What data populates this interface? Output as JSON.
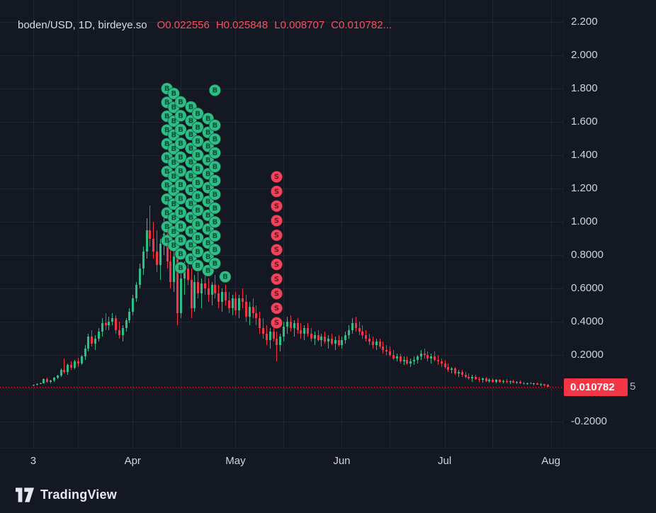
{
  "header": {
    "title": "boden/USD, 1D, birdeye.so",
    "ohlc_tokens": [
      "O0.022556",
      "H0.025848",
      "L0.008707",
      "C0.010782..."
    ]
  },
  "colors": {
    "background": "#141822",
    "grid": "rgba(148,158,184,0.10)",
    "up": "#2ebd85",
    "down": "#f23645",
    "buy_marker": "#2ebd85",
    "buy_letter": "#0b4f3a",
    "sell_marker": "#f0435c",
    "sell_letter": "#73101f",
    "axis_text": "#ced3df",
    "legend_red": "#f7525f",
    "price_tag_bg": "#f23645",
    "price_tag_text": "#ffffff",
    "current_price_line": "#f23645"
  },
  "y_axis": {
    "ticks": [
      {
        "value": 2.2,
        "label": "2.200"
      },
      {
        "value": 2.0,
        "label": "2.000"
      },
      {
        "value": 1.8,
        "label": "1.800"
      },
      {
        "value": 1.6,
        "label": "1.600"
      },
      {
        "value": 1.4,
        "label": "1.400"
      },
      {
        "value": 1.2,
        "label": "1.200"
      },
      {
        "value": 1.0,
        "label": "1.000"
      },
      {
        "value": 0.8,
        "label": "0.8000"
      },
      {
        "value": 0.6,
        "label": "0.6000"
      },
      {
        "value": 0.4,
        "label": "0.4000"
      },
      {
        "value": 0.2,
        "label": "0.2000"
      },
      {
        "value": -0.2,
        "label": "-0.2000"
      }
    ],
    "price_label": {
      "text": "0.010782",
      "value": 0.010782
    },
    "overflow_digit": "5"
  },
  "x_axis": {
    "ticks": [
      {
        "label": "3",
        "index": 0
      },
      {
        "label": "Apr",
        "index": 29
      },
      {
        "label": "May",
        "index": 59
      },
      {
        "label": "Jun",
        "index": 90
      },
      {
        "label": "Jul",
        "index": 120
      },
      {
        "label": "Aug",
        "index": 151
      }
    ]
  },
  "footer": {
    "brand": "TradingView"
  },
  "chart_data": {
    "type": "candlestick",
    "symbol": "boden/USD",
    "interval": "1D",
    "source": "birdeye.so",
    "ohlc": {
      "open": 0.022556,
      "high": 0.025848,
      "low": 0.008707,
      "close": 0.010782
    },
    "current_price": 0.010782,
    "price_range": [
      -0.357,
      2.332
    ],
    "x_range": [
      -9.7,
      154.6
    ],
    "y_grid_values": [
      2.2,
      2.0,
      1.8,
      1.6,
      1.4,
      1.2,
      1.0,
      0.8,
      0.6,
      0.4,
      0.2,
      0.0,
      -0.2
    ],
    "x_grid_indices": [
      0,
      13,
      29,
      43,
      59,
      73,
      90,
      104,
      120,
      134,
      151
    ],
    "marker_letters": {
      "buy": "B",
      "sell": "S"
    },
    "markers": [
      {
        "type": "buy",
        "index": 39,
        "top_price": 1.8,
        "count": 12
      },
      {
        "type": "buy",
        "index": 41,
        "top_price": 1.77,
        "count": 12
      },
      {
        "type": "buy",
        "index": 43,
        "top_price": 1.72,
        "count": 13
      },
      {
        "type": "buy",
        "index": 46,
        "top_price": 1.69,
        "count": 12
      },
      {
        "type": "buy",
        "index": 48,
        "top_price": 1.65,
        "count": 12
      },
      {
        "type": "buy",
        "index": 51,
        "top_price": 1.62,
        "count": 12
      },
      {
        "type": "buy",
        "index": 53,
        "top_price": 1.79,
        "count": 1
      },
      {
        "type": "buy",
        "index": 53,
        "top_price": 1.58,
        "count": 11
      },
      {
        "type": "buy",
        "index": 56,
        "top_price": 0.67,
        "count": 1
      },
      {
        "type": "sell",
        "index": 71,
        "top_price": 1.27,
        "count": 11
      }
    ],
    "candles": [
      [
        0.018,
        0.022,
        0.015,
        0.02
      ],
      [
        0.02,
        0.03,
        0.018,
        0.028
      ],
      [
        0.028,
        0.035,
        0.025,
        0.032
      ],
      [
        0.032,
        0.06,
        0.03,
        0.055
      ],
      [
        0.055,
        0.065,
        0.035,
        0.04
      ],
      [
        0.04,
        0.05,
        0.03,
        0.048
      ],
      [
        0.048,
        0.07,
        0.04,
        0.065
      ],
      [
        0.065,
        0.08,
        0.055,
        0.075
      ],
      [
        0.075,
        0.12,
        0.07,
        0.11
      ],
      [
        0.11,
        0.18,
        0.09,
        0.1
      ],
      [
        0.1,
        0.15,
        0.08,
        0.14
      ],
      [
        0.14,
        0.16,
        0.11,
        0.125
      ],
      [
        0.125,
        0.17,
        0.115,
        0.16
      ],
      [
        0.16,
        0.185,
        0.13,
        0.15
      ],
      [
        0.15,
        0.2,
        0.14,
        0.19
      ],
      [
        0.19,
        0.26,
        0.17,
        0.24
      ],
      [
        0.24,
        0.33,
        0.22,
        0.31
      ],
      [
        0.31,
        0.35,
        0.25,
        0.27
      ],
      [
        0.27,
        0.32,
        0.23,
        0.3
      ],
      [
        0.3,
        0.36,
        0.28,
        0.34
      ],
      [
        0.34,
        0.42,
        0.31,
        0.39
      ],
      [
        0.39,
        0.45,
        0.35,
        0.38
      ],
      [
        0.38,
        0.43,
        0.35,
        0.4
      ],
      [
        0.4,
        0.45,
        0.38,
        0.42
      ],
      [
        0.42,
        0.44,
        0.33,
        0.35
      ],
      [
        0.35,
        0.4,
        0.3,
        0.32
      ],
      [
        0.32,
        0.38,
        0.28,
        0.36
      ],
      [
        0.36,
        0.42,
        0.34,
        0.41
      ],
      [
        0.41,
        0.48,
        0.39,
        0.46
      ],
      [
        0.46,
        0.56,
        0.44,
        0.54
      ],
      [
        0.54,
        0.64,
        0.52,
        0.62
      ],
      [
        0.62,
        0.75,
        0.6,
        0.72
      ],
      [
        0.72,
        0.85,
        0.68,
        0.82
      ],
      [
        0.82,
        1.02,
        0.78,
        0.95
      ],
      [
        0.95,
        1.1,
        0.85,
        0.9
      ],
      [
        0.9,
        1.0,
        0.78,
        0.82
      ],
      [
        0.82,
        0.95,
        0.7,
        0.74
      ],
      [
        0.74,
        0.9,
        0.65,
        0.87
      ],
      [
        0.87,
        1.05,
        0.8,
        0.93
      ],
      [
        0.93,
        1.0,
        0.72,
        0.76
      ],
      [
        0.76,
        0.88,
        0.6,
        0.64
      ],
      [
        0.64,
        0.82,
        0.58,
        0.79
      ],
      [
        0.79,
        0.86,
        0.38,
        0.45
      ],
      [
        0.45,
        0.7,
        0.42,
        0.66
      ],
      [
        0.66,
        0.76,
        0.56,
        0.72
      ],
      [
        0.72,
        0.8,
        0.62,
        0.65
      ],
      [
        0.65,
        0.72,
        0.42,
        0.48
      ],
      [
        0.48,
        0.68,
        0.46,
        0.64
      ],
      [
        0.64,
        0.7,
        0.54,
        0.57
      ],
      [
        0.57,
        0.66,
        0.48,
        0.63
      ],
      [
        0.63,
        0.72,
        0.56,
        0.6
      ],
      [
        0.6,
        0.66,
        0.52,
        0.56
      ],
      [
        0.56,
        0.64,
        0.5,
        0.62
      ],
      [
        0.62,
        0.68,
        0.54,
        0.57
      ],
      [
        0.57,
        0.62,
        0.48,
        0.52
      ],
      [
        0.52,
        0.6,
        0.46,
        0.58
      ],
      [
        0.58,
        0.62,
        0.5,
        0.53
      ],
      [
        0.53,
        0.58,
        0.45,
        0.48
      ],
      [
        0.48,
        0.56,
        0.44,
        0.54
      ],
      [
        0.54,
        0.58,
        0.44,
        0.47
      ],
      [
        0.47,
        0.56,
        0.42,
        0.54
      ],
      [
        0.54,
        0.6,
        0.48,
        0.52
      ],
      [
        0.52,
        0.56,
        0.4,
        0.43
      ],
      [
        0.43,
        0.52,
        0.38,
        0.49
      ],
      [
        0.49,
        0.54,
        0.42,
        0.45
      ],
      [
        0.45,
        0.5,
        0.38,
        0.42
      ],
      [
        0.42,
        0.46,
        0.33,
        0.36
      ],
      [
        0.36,
        0.42,
        0.3,
        0.33
      ],
      [
        0.33,
        0.38,
        0.26,
        0.29
      ],
      [
        0.29,
        0.36,
        0.24,
        0.34
      ],
      [
        0.34,
        0.38,
        0.28,
        0.3
      ],
      [
        0.3,
        0.34,
        0.16,
        0.26
      ],
      [
        0.26,
        0.33,
        0.22,
        0.31
      ],
      [
        0.31,
        0.4,
        0.28,
        0.37
      ],
      [
        0.37,
        0.43,
        0.33,
        0.4
      ],
      [
        0.4,
        0.44,
        0.34,
        0.36
      ],
      [
        0.36,
        0.41,
        0.31,
        0.39
      ],
      [
        0.39,
        0.42,
        0.33,
        0.35
      ],
      [
        0.35,
        0.39,
        0.3,
        0.33
      ],
      [
        0.33,
        0.38,
        0.29,
        0.36
      ],
      [
        0.36,
        0.39,
        0.31,
        0.33
      ],
      [
        0.33,
        0.36,
        0.28,
        0.3
      ],
      [
        0.3,
        0.34,
        0.26,
        0.32
      ],
      [
        0.32,
        0.35,
        0.28,
        0.29
      ],
      [
        0.29,
        0.33,
        0.25,
        0.31
      ],
      [
        0.31,
        0.34,
        0.27,
        0.28
      ],
      [
        0.28,
        0.32,
        0.24,
        0.3
      ],
      [
        0.3,
        0.33,
        0.26,
        0.27
      ],
      [
        0.27,
        0.31,
        0.23,
        0.29
      ],
      [
        0.29,
        0.32,
        0.25,
        0.26
      ],
      [
        0.26,
        0.31,
        0.24,
        0.29
      ],
      [
        0.29,
        0.34,
        0.27,
        0.32
      ],
      [
        0.32,
        0.38,
        0.3,
        0.35
      ],
      [
        0.35,
        0.42,
        0.33,
        0.39
      ],
      [
        0.39,
        0.43,
        0.34,
        0.36
      ],
      [
        0.36,
        0.4,
        0.32,
        0.34
      ],
      [
        0.34,
        0.38,
        0.3,
        0.32
      ],
      [
        0.32,
        0.35,
        0.28,
        0.3
      ],
      [
        0.3,
        0.33,
        0.26,
        0.28
      ],
      [
        0.28,
        0.31,
        0.24,
        0.26
      ],
      [
        0.26,
        0.3,
        0.23,
        0.28
      ],
      [
        0.28,
        0.3,
        0.24,
        0.25
      ],
      [
        0.25,
        0.28,
        0.21,
        0.23
      ],
      [
        0.23,
        0.26,
        0.2,
        0.22
      ],
      [
        0.22,
        0.25,
        0.19,
        0.2
      ],
      [
        0.2,
        0.23,
        0.17,
        0.18
      ],
      [
        0.18,
        0.21,
        0.16,
        0.19
      ],
      [
        0.19,
        0.21,
        0.15,
        0.16
      ],
      [
        0.16,
        0.19,
        0.14,
        0.17
      ],
      [
        0.17,
        0.19,
        0.14,
        0.15
      ],
      [
        0.15,
        0.18,
        0.13,
        0.16
      ],
      [
        0.16,
        0.19,
        0.14,
        0.17
      ],
      [
        0.17,
        0.2,
        0.15,
        0.19
      ],
      [
        0.19,
        0.23,
        0.17,
        0.21
      ],
      [
        0.21,
        0.24,
        0.18,
        0.2
      ],
      [
        0.2,
        0.22,
        0.16,
        0.18
      ],
      [
        0.18,
        0.21,
        0.15,
        0.19
      ],
      [
        0.19,
        0.22,
        0.16,
        0.17
      ],
      [
        0.17,
        0.2,
        0.14,
        0.16
      ],
      [
        0.16,
        0.18,
        0.13,
        0.15
      ],
      [
        0.15,
        0.17,
        0.12,
        0.13
      ],
      [
        0.13,
        0.15,
        0.1,
        0.11
      ],
      [
        0.11,
        0.13,
        0.09,
        0.12
      ],
      [
        0.12,
        0.13,
        0.08,
        0.09
      ],
      [
        0.09,
        0.11,
        0.07,
        0.1
      ],
      [
        0.1,
        0.11,
        0.07,
        0.08
      ],
      [
        0.08,
        0.1,
        0.06,
        0.07
      ],
      [
        0.07,
        0.09,
        0.05,
        0.06
      ],
      [
        0.06,
        0.08,
        0.04,
        0.07
      ],
      [
        0.07,
        0.08,
        0.05,
        0.055
      ],
      [
        0.055,
        0.07,
        0.04,
        0.05
      ],
      [
        0.05,
        0.065,
        0.035,
        0.06
      ],
      [
        0.06,
        0.07,
        0.04,
        0.045
      ],
      [
        0.045,
        0.06,
        0.035,
        0.05
      ],
      [
        0.05,
        0.06,
        0.035,
        0.04
      ],
      [
        0.04,
        0.055,
        0.03,
        0.05
      ],
      [
        0.05,
        0.055,
        0.035,
        0.04
      ],
      [
        0.04,
        0.05,
        0.03,
        0.045
      ],
      [
        0.045,
        0.055,
        0.032,
        0.038
      ],
      [
        0.038,
        0.048,
        0.028,
        0.042
      ],
      [
        0.042,
        0.05,
        0.03,
        0.035
      ],
      [
        0.035,
        0.045,
        0.025,
        0.04
      ],
      [
        0.04,
        0.046,
        0.028,
        0.032
      ],
      [
        0.032,
        0.04,
        0.022,
        0.028
      ],
      [
        0.028,
        0.036,
        0.02,
        0.032
      ],
      [
        0.032,
        0.038,
        0.024,
        0.026
      ],
      [
        0.026,
        0.034,
        0.018,
        0.03
      ],
      [
        0.03,
        0.034,
        0.02,
        0.022
      ],
      [
        0.022,
        0.03,
        0.015,
        0.026
      ],
      [
        0.026,
        0.028,
        0.012,
        0.016
      ],
      [
        0.022556,
        0.025848,
        0.008707,
        0.010782
      ]
    ]
  }
}
